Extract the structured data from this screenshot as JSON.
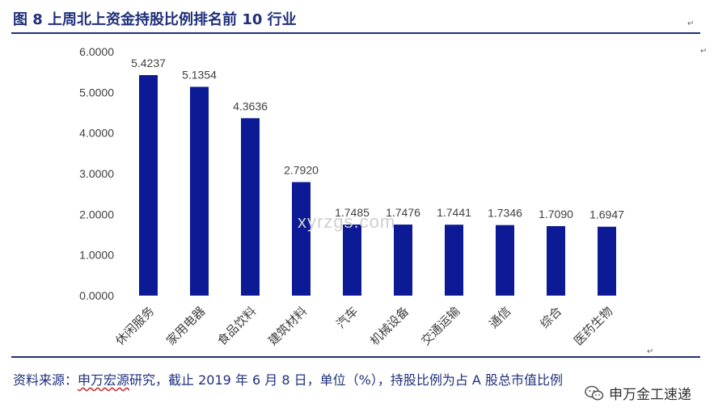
{
  "title": "图 8  上周北上资金持股比例排名前 10 行业",
  "source": {
    "prefix": "资料来源：",
    "org": "申万宏源",
    "rest": "研究，截止 2019 年 6 月 8 日，单位（%），持股比例为占 A 股总市值比例"
  },
  "watermark": "xyrzgs.com",
  "wechat": {
    "label": "申万金工速递",
    "icon": "wechat-icon"
  },
  "colors": {
    "bar": "#0c1a96",
    "title": "#1f2f7a"
  },
  "chart_data": {
    "type": "bar",
    "title": "",
    "xlabel": "",
    "ylabel": "",
    "ylim": [
      0,
      6
    ],
    "yticks": [
      "0.0000",
      "1.0000",
      "2.0000",
      "3.0000",
      "4.0000",
      "5.0000",
      "6.0000"
    ],
    "categories": [
      "休闲服务",
      "家用电器",
      "食品饮料",
      "建筑材料",
      "汽车",
      "机械设备",
      "交通运输",
      "通信",
      "综合",
      "医药生物"
    ],
    "values": [
      5.4237,
      5.1354,
      4.3636,
      2.792,
      1.7485,
      1.7476,
      1.7441,
      1.7346,
      1.709,
      1.6947
    ],
    "value_labels": [
      "5.4237",
      "5.1354",
      "4.3636",
      "2.7920",
      "1.7485",
      "1.7476",
      "1.7441",
      "1.7346",
      "1.7090",
      "1.6947"
    ]
  }
}
